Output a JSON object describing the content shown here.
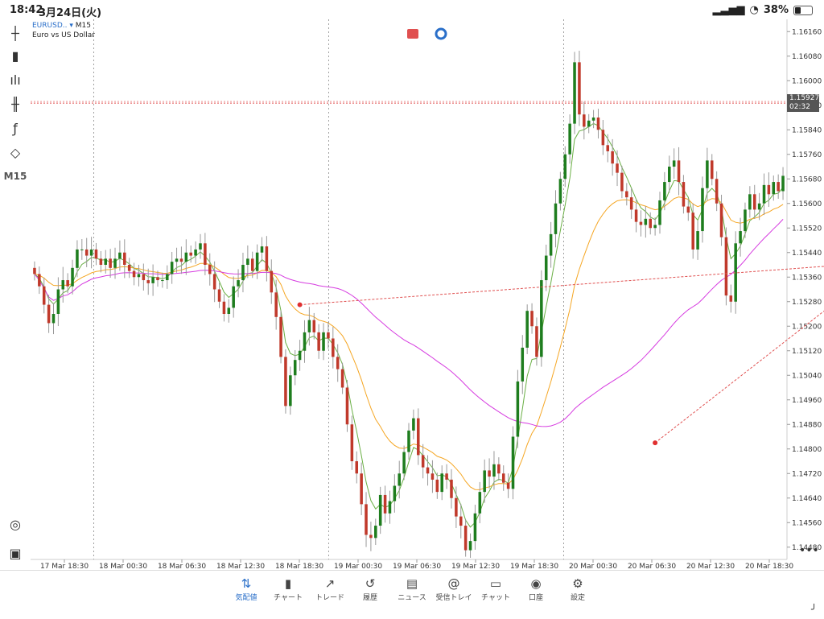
{
  "status": {
    "time": "18:42",
    "date": "3月24日(火)",
    "battery": "38%"
  },
  "symbol": {
    "name": "EURUSD..",
    "timeframe": "M15",
    "description": "Euro vs US Dollar"
  },
  "current_price": {
    "value": "1.15927",
    "timer": "02:32"
  },
  "toolbar": {
    "timeframe_label": "M15"
  },
  "nav": [
    {
      "label": "気配値",
      "icon": "quotes-icon",
      "active": true
    },
    {
      "label": "チャート",
      "icon": "chart-icon",
      "active": false
    },
    {
      "label": "トレード",
      "icon": "trade-icon",
      "active": false
    },
    {
      "label": "履歴",
      "icon": "history-icon",
      "active": false
    },
    {
      "label": "ニュース",
      "icon": "news-icon",
      "active": false
    },
    {
      "label": "受信トレイ",
      "icon": "inbox-icon",
      "active": false
    },
    {
      "label": "チャット",
      "icon": "chat-icon",
      "active": false
    },
    {
      "label": "口座",
      "icon": "account-icon",
      "active": false
    },
    {
      "label": "設定",
      "icon": "settings-icon",
      "active": false
    }
  ],
  "chart_data": {
    "type": "candlestick",
    "ylim": [
      1.1444,
      1.162
    ],
    "y_ticks": [
      "1.16160",
      "1.16080",
      "1.16000",
      "1.15920",
      "1.15840",
      "1.15760",
      "1.15680",
      "1.15600",
      "1.15520",
      "1.15440",
      "1.15360",
      "1.15280",
      "1.15200",
      "1.15120",
      "1.15040",
      "1.14960",
      "1.14880",
      "1.14800",
      "1.14720",
      "1.14640",
      "1.14560",
      "1.14480"
    ],
    "x_ticks": [
      "17 Mar 18:30",
      "18 Mar 00:30",
      "18 Mar 06:30",
      "18 Mar 12:30",
      "18 Mar 18:30",
      "19 Mar 00:30",
      "19 Mar 06:30",
      "19 Mar 12:30",
      "19 Mar 18:30",
      "20 Mar 00:30",
      "20 Mar 06:30",
      "20 Mar 12:30",
      "20 Mar 18:30"
    ],
    "day_separators": [
      "18 Mar 00:00",
      "19 Mar 00:00",
      "20 Mar 00:00"
    ],
    "current_price_line": 1.15927,
    "series": [
      {
        "style": "candles",
        "up_color": "#1e7d1e",
        "down_color": "#c0392b",
        "close": [
          1.1537,
          1.1533,
          1.1527,
          1.1521,
          1.1524,
          1.1532,
          1.1535,
          1.1533,
          1.1539,
          1.1545,
          1.1545,
          1.1543,
          1.1545,
          1.1542,
          1.154,
          1.1542,
          1.1539,
          1.1542,
          1.1544,
          1.154,
          1.1538,
          1.1536,
          1.1537,
          1.1535,
          1.1534,
          1.1536,
          1.1535,
          1.1535,
          1.1537,
          1.1541,
          1.1542,
          1.1541,
          1.1544,
          1.1543,
          1.1545,
          1.1547,
          1.154,
          1.1537,
          1.1532,
          1.1528,
          1.1524,
          1.1526,
          1.1533,
          1.1535,
          1.154,
          1.1542,
          1.1538,
          1.1544,
          1.1546,
          1.1538,
          1.1531,
          1.1523,
          1.151,
          1.1494,
          1.1504,
          1.1509,
          1.1512,
          1.1518,
          1.1522,
          1.1518,
          1.1512,
          1.1518,
          1.1516,
          1.151,
          1.1506,
          1.15,
          1.1488,
          1.1476,
          1.1472,
          1.1462,
          1.1452,
          1.1451,
          1.1455,
          1.1465,
          1.1459,
          1.1463,
          1.1468,
          1.1472,
          1.1479,
          1.1486,
          1.149,
          1.1478,
          1.1474,
          1.1472,
          1.147,
          1.1466,
          1.1472,
          1.147,
          1.1464,
          1.1458,
          1.1455,
          1.1447,
          1.145,
          1.1459,
          1.1466,
          1.1473,
          1.1471,
          1.1475,
          1.1472,
          1.1469,
          1.1467,
          1.1484,
          1.1502,
          1.1513,
          1.1525,
          1.152,
          1.151,
          1.1535,
          1.1543,
          1.155,
          1.156,
          1.1568,
          1.1576,
          1.1586,
          1.1606,
          1.1589,
          1.1585,
          1.1587,
          1.1588,
          1.1584,
          1.1579,
          1.1577,
          1.1573,
          1.157,
          1.1564,
          1.1562,
          1.1558,
          1.1554,
          1.1553,
          1.1555,
          1.1552,
          1.1553,
          1.1561,
          1.1567,
          1.1572,
          1.1574,
          1.1567,
          1.1559,
          1.1557,
          1.1545,
          1.1551,
          1.1565,
          1.1574,
          1.1568,
          1.156,
          1.1549,
          1.153,
          1.1528,
          1.1547,
          1.1551,
          1.1558,
          1.1563,
          1.1558,
          1.156,
          1.1566,
          1.1563,
          1.1567,
          1.1564,
          1.1569
        ]
      },
      {
        "style": "line",
        "color": "#6aaf45"
      },
      {
        "style": "line",
        "color": "#f5a623"
      },
      {
        "style": "line",
        "color": "#d63be0"
      }
    ],
    "trade_links": [
      {
        "from_index": 56,
        "from_price": 1.1527,
        "to_index": 180,
        "to_price": 1.1541,
        "from_marker": "red",
        "to_marker": "blue"
      },
      {
        "from_index": 131,
        "from_price": 1.1482,
        "to_index": 180,
        "to_price": 1.1541,
        "from_marker": "red",
        "to_marker": "blue"
      }
    ]
  }
}
